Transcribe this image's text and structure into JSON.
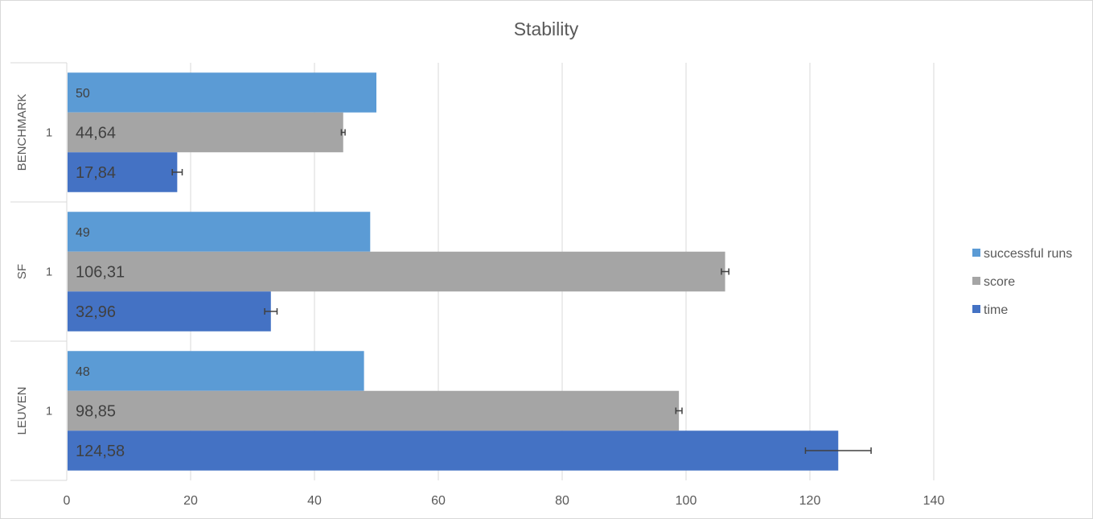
{
  "chart_data": {
    "type": "bar",
    "orientation": "horizontal",
    "title": "Stability",
    "xlim": [
      0,
      140
    ],
    "xticks": [
      0,
      20,
      40,
      60,
      80,
      100,
      120,
      140
    ],
    "grid": "vertical",
    "legend_position": "right",
    "categories": [
      {
        "group": "LEUVEN",
        "sub": "1"
      },
      {
        "group": "SF",
        "sub": "1"
      },
      {
        "group": "BENCHMARK",
        "sub": "1"
      }
    ],
    "series": [
      {
        "name": "successful runs",
        "color": "#5b9bd5",
        "values": [
          48,
          49,
          50
        ],
        "labels": [
          "48",
          "49",
          "50"
        ],
        "errors": [
          null,
          null,
          null
        ]
      },
      {
        "name": "score",
        "color": "#a5a5a5",
        "values": [
          98.85,
          106.31,
          44.64
        ],
        "labels": [
          "98,85",
          "106,31",
          "44,64"
        ],
        "errors": [
          0.5,
          0.6,
          0.3
        ]
      },
      {
        "name": "time",
        "color": "#4472c4",
        "values": [
          124.58,
          32.96,
          17.84
        ],
        "labels": [
          "124,58",
          "32,96",
          "17,84"
        ],
        "errors": [
          5.3,
          1.0,
          0.8
        ]
      }
    ]
  }
}
